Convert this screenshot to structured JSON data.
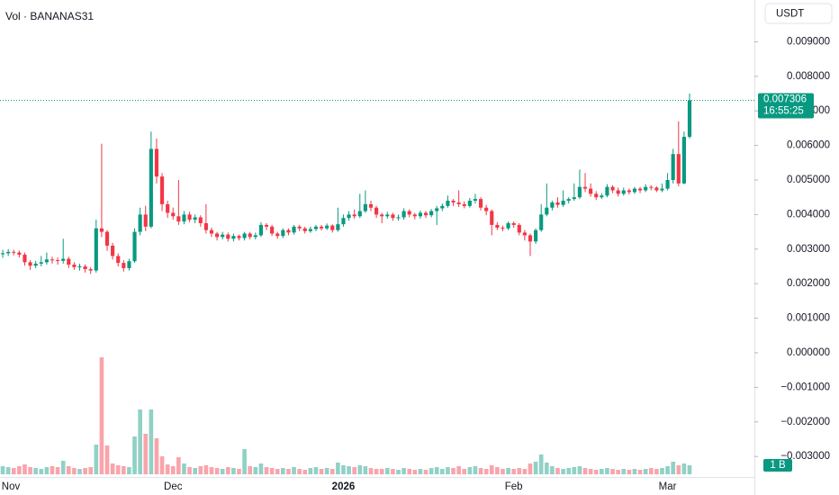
{
  "chart_data": {
    "type": "candlestick",
    "title": "Vol · BANANAS31",
    "currency": "USDT",
    "countdown": "16:55:25",
    "volume_label": "1 B",
    "up_color": "#089981",
    "down_color": "#f23645",
    "grid": false,
    "categories": [
      null,
      "Nov",
      null,
      null,
      null,
      null,
      null,
      null,
      null,
      null,
      null,
      null,
      null,
      null,
      null,
      null,
      null,
      null,
      null,
      null,
      null,
      null,
      null,
      null,
      null,
      null,
      null,
      null,
      null,
      null,
      null,
      "Dec",
      null,
      null,
      null,
      null,
      null,
      null,
      null,
      null,
      null,
      null,
      null,
      null,
      null,
      null,
      null,
      null,
      null,
      null,
      null,
      null,
      null,
      null,
      null,
      null,
      null,
      null,
      null,
      null,
      null,
      null,
      "2026",
      null,
      null,
      null,
      null,
      null,
      null,
      null,
      null,
      null,
      null,
      null,
      null,
      null,
      null,
      null,
      null,
      null,
      null,
      null,
      null,
      null,
      null,
      null,
      null,
      null,
      null,
      null,
      null,
      null,
      null,
      "Feb",
      null,
      null,
      null,
      null,
      null,
      null,
      null,
      null,
      null,
      null,
      null,
      null,
      null,
      null,
      null,
      null,
      null,
      null,
      null,
      null,
      null,
      null,
      null,
      null,
      null,
      null,
      null,
      "Mar",
      null,
      null,
      null,
      null
    ],
    "open": [
      0.00285,
      0.00288,
      0.00292,
      0.0029,
      0.00284,
      0.00262,
      0.00252,
      0.00258,
      0.00262,
      0.0027,
      0.00268,
      0.00266,
      0.00272,
      0.00255,
      0.00248,
      0.0025,
      0.00242,
      0.00238,
      0.0036,
      0.0035,
      0.0031,
      0.0028,
      0.0026,
      0.00245,
      0.00265,
      0.0035,
      0.004,
      0.00365,
      0.0059,
      0.0051,
      0.0043,
      0.00405,
      0.00395,
      0.0038,
      0.004,
      0.00385,
      0.00392,
      0.00375,
      0.00355,
      0.00345,
      0.00335,
      0.00342,
      0.0033,
      0.00338,
      0.00332,
      0.00345,
      0.00335,
      0.0034,
      0.0037,
      0.00365,
      0.00345,
      0.00338,
      0.00355,
      0.00348,
      0.00365,
      0.0036,
      0.00352,
      0.00358,
      0.00365,
      0.0036,
      0.00368,
      0.00355,
      0.00372,
      0.0039,
      0.004,
      0.00395,
      0.0041,
      0.0043,
      0.0042,
      0.004,
      0.00395,
      0.004,
      0.0039,
      0.00392,
      0.0041,
      0.004,
      0.00395,
      0.00405,
      0.00398,
      0.0041,
      0.00418,
      0.00425,
      0.0044,
      0.00435,
      0.0043,
      0.00425,
      0.0044,
      0.00445,
      0.0042,
      0.0041,
      0.0037,
      0.00362,
      0.0036,
      0.00375,
      0.0037,
      0.00348,
      0.0034,
      0.00322,
      0.00355,
      0.004,
      0.0042,
      0.00435,
      0.00428,
      0.0044,
      0.00445,
      0.0045,
      0.0048,
      0.00475,
      0.0046,
      0.0045,
      0.00455,
      0.0048,
      0.0047,
      0.0046,
      0.0047,
      0.00465,
      0.00475,
      0.0047,
      0.0048,
      0.00478,
      0.0047,
      0.00475,
      0.005,
      0.00575,
      0.0049,
      0.00625
    ],
    "high": [
      0.00298,
      0.003,
      0.00298,
      0.00296,
      0.0029,
      0.00268,
      0.00266,
      0.0028,
      0.0029,
      0.00278,
      0.00276,
      0.0033,
      0.00278,
      0.00262,
      0.00258,
      0.00256,
      0.00248,
      0.00385,
      0.00605,
      0.00355,
      0.00318,
      0.00288,
      0.00268,
      0.00272,
      0.0036,
      0.0042,
      0.00425,
      0.0064,
      0.0062,
      0.0052,
      0.0044,
      0.0042,
      0.005,
      0.0041,
      0.00408,
      0.004,
      0.00398,
      0.0043,
      0.00362,
      0.0035,
      0.0035,
      0.00348,
      0.00345,
      0.00342,
      0.0035,
      0.0035,
      0.00348,
      0.00378,
      0.00375,
      0.0037,
      0.0035,
      0.0036,
      0.0036,
      0.0037,
      0.0037,
      0.00365,
      0.00365,
      0.0037,
      0.0037,
      0.00374,
      0.00372,
      0.0042,
      0.004,
      0.0041,
      0.00415,
      0.0046,
      0.0047,
      0.0044,
      0.00425,
      0.00405,
      0.00408,
      0.00405,
      0.004,
      0.00418,
      0.00415,
      0.00405,
      0.00412,
      0.0041,
      0.00416,
      0.00425,
      0.00432,
      0.00455,
      0.00445,
      0.0047,
      0.00438,
      0.00448,
      0.0046,
      0.0045,
      0.00428,
      0.00415,
      0.00378,
      0.00368,
      0.0038,
      0.0038,
      0.00375,
      0.00355,
      0.00345,
      0.0036,
      0.0043,
      0.0049,
      0.0044,
      0.0045,
      0.0047,
      0.0045,
      0.0049,
      0.0053,
      0.0052,
      0.0049,
      0.00468,
      0.00462,
      0.00488,
      0.00485,
      0.00478,
      0.00478,
      0.00475,
      0.0048,
      0.0048,
      0.00488,
      0.00485,
      0.00482,
      0.0049,
      0.0052,
      0.0059,
      0.0067,
      0.0064,
      0.0075
    ],
    "low": [
      0.00275,
      0.0028,
      0.00282,
      0.00276,
      0.00252,
      0.0024,
      0.00245,
      0.0025,
      0.00255,
      0.00258,
      0.00255,
      0.00258,
      0.00245,
      0.0024,
      0.00238,
      0.00232,
      0.00228,
      0.00232,
      0.00335,
      0.00295,
      0.0027,
      0.0025,
      0.00235,
      0.00238,
      0.0026,
      0.0034,
      0.00352,
      0.0036,
      0.0049,
      0.0041,
      0.0039,
      0.00385,
      0.0037,
      0.00372,
      0.00378,
      0.00375,
      0.00365,
      0.00345,
      0.00335,
      0.00325,
      0.00328,
      0.00322,
      0.00322,
      0.00325,
      0.00325,
      0.00328,
      0.00328,
      0.00335,
      0.00355,
      0.00338,
      0.0033,
      0.00332,
      0.0034,
      0.00342,
      0.00352,
      0.00345,
      0.00347,
      0.00352,
      0.00354,
      0.00355,
      0.00348,
      0.0035,
      0.00365,
      0.00382,
      0.00388,
      0.0039,
      0.00405,
      0.0041,
      0.0039,
      0.00375,
      0.00388,
      0.00382,
      0.00382,
      0.00385,
      0.00392,
      0.00386,
      0.00388,
      0.0039,
      0.00392,
      0.0037,
      0.0041,
      0.0042,
      0.00425,
      0.00422,
      0.00418,
      0.0042,
      0.00432,
      0.00412,
      0.00398,
      0.0034,
      0.00355,
      0.00352,
      0.00355,
      0.00362,
      0.0034,
      0.00325,
      0.0028,
      0.00315,
      0.0035,
      0.00395,
      0.00412,
      0.0042,
      0.00422,
      0.00432,
      0.0044,
      0.00445,
      0.00465,
      0.00452,
      0.00442,
      0.00445,
      0.0045,
      0.00462,
      0.00452,
      0.00455,
      0.00458,
      0.0046,
      0.00462,
      0.00465,
      0.0047,
      0.00465,
      0.00465,
      0.0047,
      0.0049,
      0.00482,
      0.00488,
      0.0062
    ],
    "close": [
      0.00288,
      0.00292,
      0.0029,
      0.00284,
      0.00262,
      0.00252,
      0.00258,
      0.00262,
      0.0027,
      0.00268,
      0.00266,
      0.00272,
      0.00255,
      0.00248,
      0.0025,
      0.00242,
      0.00238,
      0.0036,
      0.0035,
      0.0031,
      0.0028,
      0.0026,
      0.00245,
      0.00265,
      0.0035,
      0.004,
      0.00365,
      0.0059,
      0.0051,
      0.0043,
      0.00405,
      0.00395,
      0.0038,
      0.004,
      0.00385,
      0.00392,
      0.00375,
      0.00355,
      0.00345,
      0.00335,
      0.00342,
      0.0033,
      0.00338,
      0.00332,
      0.00345,
      0.00335,
      0.0034,
      0.0037,
      0.00365,
      0.00345,
      0.00338,
      0.00355,
      0.00348,
      0.00365,
      0.0036,
      0.00352,
      0.00358,
      0.00365,
      0.0036,
      0.00368,
      0.00355,
      0.00372,
      0.0039,
      0.004,
      0.00395,
      0.0041,
      0.0043,
      0.0042,
      0.004,
      0.00395,
      0.004,
      0.0039,
      0.00392,
      0.0041,
      0.004,
      0.00395,
      0.00405,
      0.00398,
      0.0041,
      0.00418,
      0.00425,
      0.0044,
      0.00435,
      0.0043,
      0.00425,
      0.0044,
      0.00445,
      0.0042,
      0.0041,
      0.0037,
      0.00362,
      0.0036,
      0.00375,
      0.0037,
      0.00348,
      0.0034,
      0.00322,
      0.00355,
      0.004,
      0.0042,
      0.00435,
      0.00428,
      0.0044,
      0.00445,
      0.0045,
      0.0048,
      0.00475,
      0.0046,
      0.0045,
      0.00455,
      0.0048,
      0.0047,
      0.0046,
      0.0047,
      0.00465,
      0.00475,
      0.0047,
      0.0048,
      0.00478,
      0.0047,
      0.00475,
      0.005,
      0.00575,
      0.0049,
      0.00625,
      0.007306
    ],
    "volume": [
      0.9,
      0.8,
      0.7,
      0.9,
      1.1,
      0.8,
      0.7,
      0.6,
      0.8,
      0.9,
      0.8,
      1.5,
      0.9,
      0.7,
      0.6,
      0.7,
      0.8,
      3.3,
      13,
      3.2,
      1.2,
      1,
      0.9,
      0.8,
      4.2,
      7.2,
      4.5,
      7.2,
      4,
      2,
      1.1,
      0.9,
      1.9,
      1.2,
      0.8,
      0.7,
      0.9,
      1,
      0.8,
      0.7,
      0.6,
      0.8,
      0.7,
      0.6,
      2.8,
      0.9,
      0.8,
      1.2,
      0.8,
      0.7,
      0.6,
      0.7,
      0.6,
      0.8,
      0.6,
      0.5,
      0.7,
      0.8,
      0.6,
      0.7,
      0.6,
      1.3,
      1,
      0.9,
      0.8,
      1,
      0.9,
      0.7,
      0.6,
      0.6,
      0.7,
      0.6,
      0.5,
      0.7,
      0.6,
      0.5,
      0.6,
      0.5,
      0.7,
      0.8,
      0.6,
      0.8,
      0.7,
      0.9,
      0.6,
      0.8,
      0.9,
      0.7,
      0.6,
      1,
      0.8,
      0.6,
      0.7,
      0.6,
      0.7,
      0.6,
      1.2,
      1.4,
      2.2,
      1.3,
      0.9,
      0.7,
      0.6,
      0.7,
      0.8,
      0.9,
      0.7,
      0.6,
      0.5,
      0.6,
      0.7,
      0.6,
      0.5,
      0.6,
      0.5,
      0.6,
      0.5,
      0.6,
      0.7,
      0.6,
      0.7,
      0.9,
      1.4,
      1,
      1.2,
      1
    ],
    "ylim": [
      -0.003724,
      0.010208
    ],
    "y2lim": [
      0,
      13.2
    ],
    "yticks": [
      {
        "value": 0.009,
        "label": "0.009000"
      },
      {
        "value": 0.008,
        "label": "0.008000"
      },
      {
        "value": 0.007,
        "label": "0.007000"
      },
      {
        "value": 0.006,
        "label": "0.006000"
      },
      {
        "value": 0.005,
        "label": "0.005000"
      },
      {
        "value": 0.004,
        "label": "0.004000"
      },
      {
        "value": 0.003,
        "label": "0.003000"
      },
      {
        "value": 0.002,
        "label": "0.002000"
      },
      {
        "value": 0.001,
        "label": "0.001000"
      },
      {
        "value": 0,
        "label": "0.000000"
      },
      {
        "value": -0.001,
        "label": "−0.001000"
      },
      {
        "value": -0.002,
        "label": "−0.002000"
      },
      {
        "value": -0.003,
        "label": "−0.003000"
      }
    ]
  }
}
